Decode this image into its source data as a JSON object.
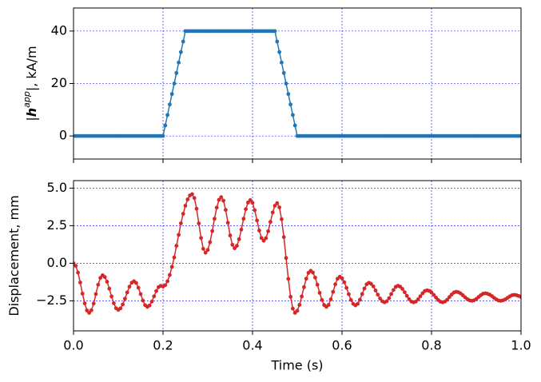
{
  "chart_data": [
    {
      "type": "line",
      "ylabel": [
        "|",
        "h",
        "app",
        "|, kA/m"
      ],
      "xlim": [
        0,
        1
      ],
      "ylim": [
        -8.8,
        48.8
      ],
      "xticks": [
        0,
        0.2,
        0.4,
        0.6,
        0.8,
        1
      ],
      "show_xticklabels": false,
      "yticks": [
        0,
        20,
        40
      ],
      "grid": true,
      "grid_color": "#0000ff",
      "x": [
        0,
        0.005,
        0.01,
        0.015,
        0.02,
        0.025,
        0.03,
        0.035,
        0.04,
        0.045,
        0.05,
        0.055,
        0.06,
        0.065,
        0.07,
        0.075,
        0.08,
        0.085,
        0.09,
        0.095,
        0.1,
        0.105,
        0.11,
        0.115,
        0.12,
        0.125,
        0.13,
        0.135,
        0.14,
        0.145,
        0.15,
        0.155,
        0.16,
        0.165,
        0.17,
        0.175,
        0.18,
        0.185,
        0.19,
        0.195,
        0.2,
        0.205,
        0.21,
        0.215,
        0.22,
        0.225,
        0.23,
        0.235,
        0.24,
        0.245,
        0.25,
        0.255,
        0.26,
        0.265,
        0.27,
        0.275,
        0.28,
        0.285,
        0.29,
        0.295,
        0.3,
        0.305,
        0.31,
        0.315,
        0.32,
        0.325,
        0.33,
        0.335,
        0.34,
        0.345,
        0.35,
        0.355,
        0.36,
        0.365,
        0.37,
        0.375,
        0.38,
        0.385,
        0.39,
        0.395,
        0.4,
        0.405,
        0.41,
        0.415,
        0.42,
        0.425,
        0.43,
        0.435,
        0.44,
        0.445,
        0.45,
        0.455,
        0.46,
        0.465,
        0.47,
        0.475,
        0.48,
        0.485,
        0.49,
        0.495,
        0.5,
        0.505,
        0.51,
        0.515,
        0.52,
        0.525,
        0.53,
        0.535,
        0.54,
        0.545,
        0.55,
        0.555,
        0.56,
        0.565,
        0.57,
        0.575,
        0.58,
        0.585,
        0.59,
        0.595,
        0.6,
        0.605,
        0.61,
        0.615,
        0.62,
        0.625,
        0.63,
        0.635,
        0.64,
        0.645,
        0.65,
        0.655,
        0.66,
        0.665,
        0.67,
        0.675,
        0.68,
        0.685,
        0.69,
        0.695,
        0.7,
        0.705,
        0.71,
        0.715,
        0.72,
        0.725,
        0.73,
        0.735,
        0.74,
        0.745,
        0.75,
        0.755,
        0.76,
        0.765,
        0.77,
        0.775,
        0.78,
        0.785,
        0.79,
        0.795,
        0.8,
        0.805,
        0.81,
        0.815,
        0.82,
        0.825,
        0.83,
        0.835,
        0.84,
        0.845,
        0.85,
        0.855,
        0.86,
        0.865,
        0.87,
        0.875,
        0.88,
        0.885,
        0.89,
        0.895,
        0.9,
        0.905,
        0.91,
        0.915,
        0.92,
        0.925,
        0.93,
        0.935,
        0.94,
        0.945,
        0.95,
        0.955,
        0.96,
        0.965,
        0.97,
        0.975,
        0.98,
        0.985,
        0.99,
        0.995,
        1
      ],
      "series": [
        {
          "color": "#1f77b4",
          "values": [
            0,
            0,
            0,
            0,
            0,
            0,
            0,
            0,
            0,
            0,
            0,
            0,
            0,
            0,
            0,
            0,
            0,
            0,
            0,
            0,
            0,
            0,
            0,
            0,
            0,
            0,
            0,
            0,
            0,
            0,
            0,
            0,
            0,
            0,
            0,
            0,
            0,
            0,
            0,
            0,
            0,
            4,
            8,
            12,
            16,
            20,
            24,
            28,
            32,
            36,
            40,
            40,
            40,
            40,
            40,
            40,
            40,
            40,
            40,
            40,
            40,
            40,
            40,
            40,
            40,
            40,
            40,
            40,
            40,
            40,
            40,
            40,
            40,
            40,
            40,
            40,
            40,
            40,
            40,
            40,
            40,
            40,
            40,
            40,
            40,
            40,
            40,
            40,
            40,
            40,
            40,
            36,
            32,
            28,
            24,
            20,
            16,
            12,
            8,
            4,
            0,
            0,
            0,
            0,
            0,
            0,
            0,
            0,
            0,
            0,
            0,
            0,
            0,
            0,
            0,
            0,
            0,
            0,
            0,
            0,
            0,
            0,
            0,
            0,
            0,
            0,
            0,
            0,
            0,
            0,
            0,
            0,
            0,
            0,
            0,
            0,
            0,
            0,
            0,
            0,
            0,
            0,
            0,
            0,
            0,
            0,
            0,
            0,
            0,
            0,
            0,
            0,
            0,
            0,
            0,
            0,
            0,
            0,
            0,
            0,
            0,
            0,
            0,
            0,
            0,
            0,
            0,
            0,
            0,
            0,
            0,
            0,
            0,
            0,
            0,
            0,
            0,
            0,
            0,
            0,
            0,
            0,
            0,
            0,
            0,
            0,
            0,
            0,
            0,
            0,
            0,
            0,
            0,
            0,
            0,
            0,
            0,
            0,
            0,
            0,
            0
          ]
        }
      ]
    },
    {
      "type": "line",
      "xlabel": "Time (s)",
      "ylabel": [
        "Displacement, mm"
      ],
      "xlim": [
        0,
        1
      ],
      "ylim": [
        -4.5,
        5.5
      ],
      "xticks": [
        {
          "value": 0,
          "label": "0.0"
        },
        0.2,
        0.4,
        0.6,
        0.8,
        {
          "value": 1,
          "label": "1.0"
        }
      ],
      "show_xticklabels": true,
      "yticks": [
        {
          "value": -2.5,
          "label": "−2.5"
        },
        {
          "value": 0,
          "label": "0.0"
        },
        2.5,
        {
          "value": 5,
          "label": "5.0"
        }
      ],
      "grid": true,
      "grid_color": "#0000ff",
      "x": [
        0,
        0.005,
        0.01,
        0.015,
        0.02,
        0.025,
        0.03,
        0.035,
        0.04,
        0.045,
        0.05,
        0.055,
        0.06,
        0.065,
        0.07,
        0.075,
        0.08,
        0.085,
        0.09,
        0.095,
        0.1,
        0.105,
        0.11,
        0.115,
        0.12,
        0.125,
        0.13,
        0.135,
        0.14,
        0.145,
        0.15,
        0.155,
        0.16,
        0.165,
        0.17,
        0.175,
        0.18,
        0.185,
        0.19,
        0.195,
        0.2,
        0.205,
        0.21,
        0.215,
        0.22,
        0.225,
        0.23,
        0.235,
        0.24,
        0.245,
        0.25,
        0.255,
        0.26,
        0.265,
        0.27,
        0.275,
        0.28,
        0.285,
        0.29,
        0.295,
        0.3,
        0.305,
        0.31,
        0.315,
        0.32,
        0.325,
        0.33,
        0.335,
        0.34,
        0.345,
        0.35,
        0.355,
        0.36,
        0.365,
        0.37,
        0.375,
        0.38,
        0.385,
        0.39,
        0.395,
        0.4,
        0.405,
        0.41,
        0.415,
        0.42,
        0.425,
        0.43,
        0.435,
        0.44,
        0.445,
        0.45,
        0.455,
        0.46,
        0.465,
        0.47,
        0.475,
        0.48,
        0.485,
        0.49,
        0.495,
        0.5,
        0.505,
        0.51,
        0.515,
        0.52,
        0.525,
        0.53,
        0.535,
        0.54,
        0.545,
        0.55,
        0.555,
        0.56,
        0.565,
        0.57,
        0.575,
        0.58,
        0.585,
        0.59,
        0.595,
        0.6,
        0.605,
        0.61,
        0.615,
        0.62,
        0.625,
        0.63,
        0.635,
        0.64,
        0.645,
        0.65,
        0.655,
        0.66,
        0.665,
        0.67,
        0.675,
        0.68,
        0.685,
        0.69,
        0.695,
        0.7,
        0.705,
        0.71,
        0.715,
        0.72,
        0.725,
        0.73,
        0.735,
        0.74,
        0.745,
        0.75,
        0.755,
        0.76,
        0.765,
        0.77,
        0.775,
        0.78,
        0.785,
        0.79,
        0.795,
        0.8,
        0.805,
        0.81,
        0.815,
        0.82,
        0.825,
        0.83,
        0.835,
        0.84,
        0.845,
        0.85,
        0.855,
        0.86,
        0.865,
        0.87,
        0.875,
        0.88,
        0.885,
        0.89,
        0.895,
        0.9,
        0.905,
        0.91,
        0.915,
        0.92,
        0.925,
        0.93,
        0.935,
        0.94,
        0.945,
        0.95,
        0.955,
        0.96,
        0.965,
        0.97,
        0.975,
        0.98,
        0.985,
        0.99,
        0.995,
        1
      ],
      "series": [
        {
          "color": "#d62728",
          "values": [
            0,
            -0.17,
            -0.62,
            -1.28,
            -2.02,
            -2.67,
            -3.14,
            -3.3,
            -3.13,
            -2.68,
            -2.05,
            -1.43,
            -0.97,
            -0.8,
            -0.92,
            -1.23,
            -1.69,
            -2.21,
            -2.66,
            -2.99,
            -3.1,
            -3.0,
            -2.74,
            -2.36,
            -1.94,
            -1.56,
            -1.3,
            -1.2,
            -1.31,
            -1.63,
            -2.05,
            -2.48,
            -2.79,
            -2.9,
            -2.81,
            -2.55,
            -2.2,
            -1.85,
            -1.59,
            -1.5,
            -1.55,
            -1.46,
            -1.2,
            -0.78,
            -0.24,
            0.39,
            1.16,
            1.89,
            2.66,
            3.29,
            3.83,
            4.25,
            4.51,
            4.6,
            4.34,
            3.63,
            2.65,
            1.68,
            0.96,
            0.7,
            0.89,
            1.4,
            2.14,
            2.96,
            3.7,
            4.22,
            4.4,
            4.17,
            3.55,
            2.7,
            1.85,
            1.23,
            1.0,
            1.16,
            1.6,
            2.24,
            2.96,
            3.6,
            4.04,
            4.2,
            4.02,
            3.53,
            2.85,
            2.18,
            1.68,
            1.5,
            1.67,
            2.13,
            2.75,
            3.38,
            3.83,
            4.0,
            3.72,
            2.93,
            1.74,
            0.35,
            -1.04,
            -2.23,
            -3.02,
            -3.3,
            -3.16,
            -2.77,
            -2.21,
            -1.59,
            -1.03,
            -0.64,
            -0.5,
            -0.62,
            -0.95,
            -1.43,
            -1.97,
            -2.44,
            -2.78,
            -2.9,
            -2.77,
            -2.4,
            -1.9,
            -1.4,
            -1.03,
            -0.9,
            -1.0,
            -1.26,
            -1.64,
            -2.06,
            -2.44,
            -2.7,
            -2.8,
            -2.7,
            -2.43,
            -2.05,
            -1.68,
            -1.4,
            -1.3,
            -1.37,
            -1.54,
            -1.81,
            -2.09,
            -2.35,
            -2.53,
            -2.6,
            -2.53,
            -2.33,
            -2.05,
            -1.78,
            -1.57,
            -1.5,
            -1.56,
            -1.71,
            -1.93,
            -2.17,
            -2.39,
            -2.55,
            -2.6,
            -2.55,
            -2.4,
            -2.2,
            -2.0,
            -1.85,
            -1.8,
            -1.84,
            -1.95,
            -2.11,
            -2.29,
            -2.45,
            -2.56,
            -2.6,
            -2.55,
            -2.43,
            -2.25,
            -2.08,
            -1.95,
            -1.9,
            -1.93,
            -2.01,
            -2.13,
            -2.27,
            -2.39,
            -2.47,
            -2.5,
            -2.47,
            -2.38,
            -2.25,
            -2.13,
            -2.03,
            -2.0,
            -2.03,
            -2.09,
            -2.19,
            -2.31,
            -2.41,
            -2.48,
            -2.5,
            -2.47,
            -2.4,
            -2.3,
            -2.2,
            -2.13,
            -2.1,
            -2.13,
            -2.18,
            -2.24
          ]
        }
      ]
    }
  ]
}
